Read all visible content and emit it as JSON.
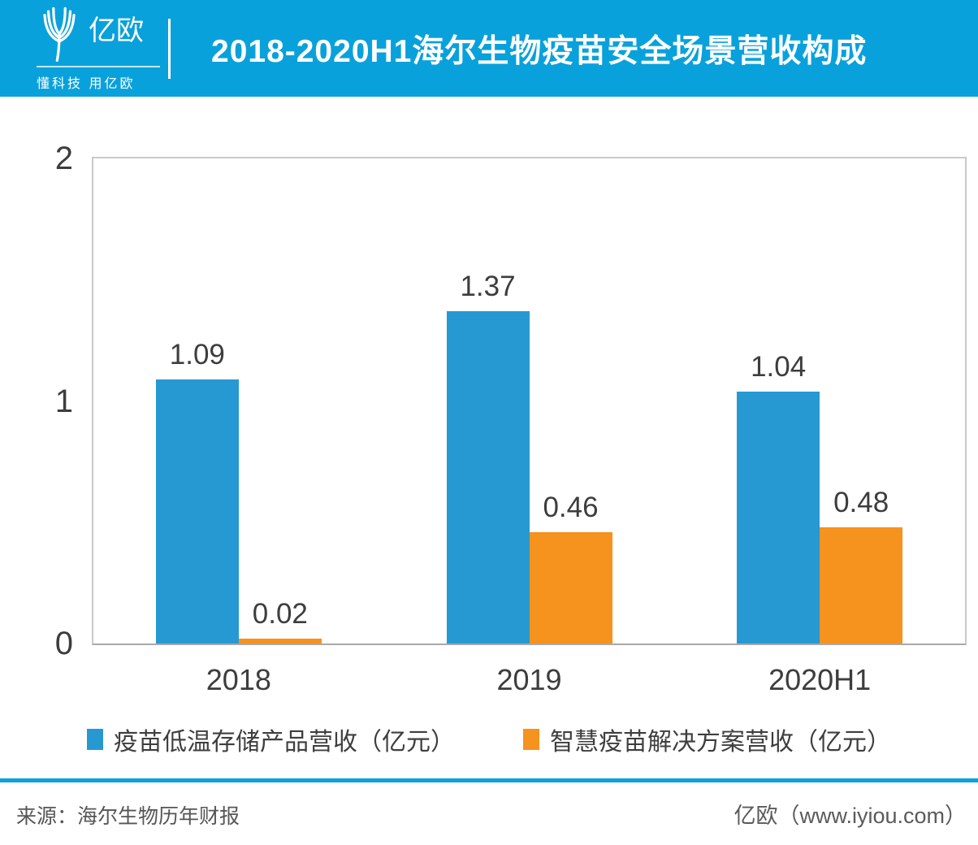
{
  "header": {
    "logo_text": "亿欧",
    "logo_tagline": "懂科技 用亿欧",
    "title": "2018-2020H1海尔生物疫苗安全场景营收构成"
  },
  "chart_data": {
    "type": "bar",
    "title": "2018-2020H1海尔生物疫苗安全场景营收构成",
    "categories": [
      "2018",
      "2019",
      "2020H1"
    ],
    "series": [
      {
        "name": "疫苗低温存储产品营收（亿元）",
        "color": "#2699D2",
        "values": [
          1.09,
          1.37,
          1.04
        ]
      },
      {
        "name": "智慧疫苗解决方案营收（亿元）",
        "color": "#F6921E",
        "values": [
          0.02,
          0.46,
          0.48
        ]
      }
    ],
    "ylim": [
      0,
      2
    ],
    "yticks": [
      0,
      1,
      2
    ],
    "xlabel": "",
    "ylabel": "",
    "grid": false,
    "legend_position": "bottom",
    "value_labels_shown": true
  },
  "footer": {
    "source": "来源：海尔生物历年财报",
    "brand": "亿欧（www.iyiou.com）"
  },
  "colors": {
    "header_bg": "#09A1DB",
    "footer_rule": "#09A1DB",
    "bar_blue": "#2699D2",
    "bar_orange": "#F6921E",
    "axis_text": "#3D3D3D"
  }
}
